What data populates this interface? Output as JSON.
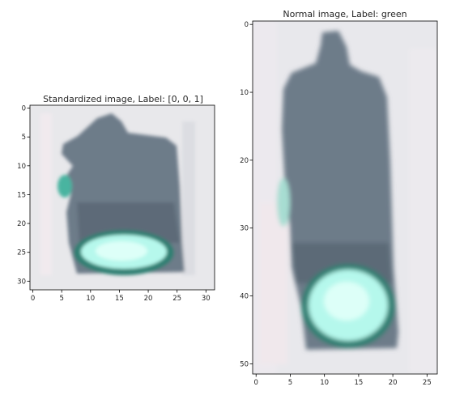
{
  "figures": [
    {
      "id": "standardized",
      "title": "Standardized image, Label: [0, 0, 1]",
      "x_ticks": [
        "0",
        "5",
        "10",
        "15",
        "20",
        "25",
        "30"
      ],
      "y_ticks": [
        "0",
        "5",
        "10",
        "15",
        "20",
        "25",
        "30"
      ],
      "x_values": [
        0,
        5,
        10,
        15,
        20,
        25,
        30
      ],
      "y_values": [
        0,
        5,
        10,
        15,
        20,
        25,
        30
      ],
      "xlim": [
        -0.5,
        31.5
      ],
      "ylim": [
        31.5,
        -0.5
      ]
    },
    {
      "id": "normal",
      "title": "Normal image, Label: green",
      "x_ticks": [
        "0",
        "5",
        "10",
        "15",
        "20",
        "25"
      ],
      "y_ticks": [
        "0",
        "10",
        "20",
        "30",
        "40",
        "50"
      ],
      "x_values": [
        0,
        5,
        10,
        15,
        20,
        25
      ],
      "y_values": [
        0,
        10,
        20,
        30,
        40,
        50
      ],
      "xlim": [
        -0.5,
        26.5
      ],
      "ylim": [
        51.5,
        -0.5
      ]
    }
  ],
  "colors": {
    "housing": "#6c7a88",
    "housing_dark": "#4b5a66",
    "lit_lamp": "#b8fbee",
    "lamp_ring": "#2f8f80",
    "background": "#e9e9ec"
  }
}
